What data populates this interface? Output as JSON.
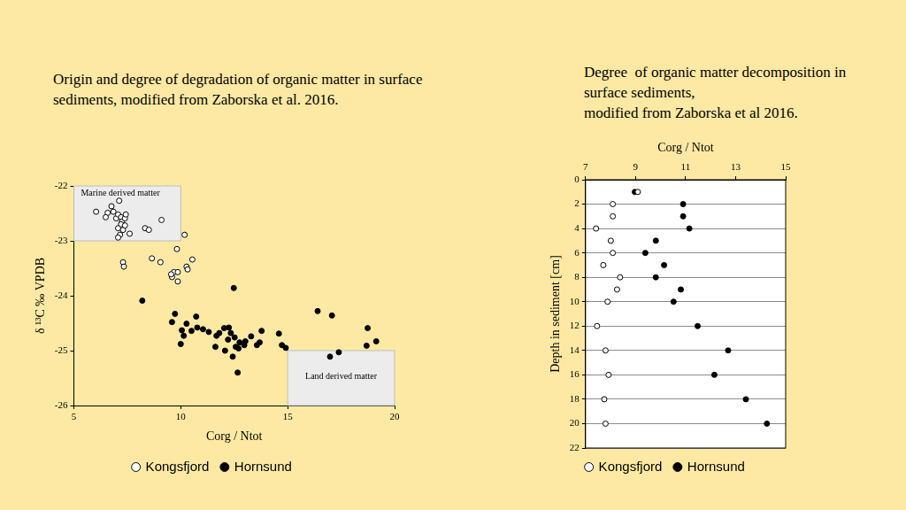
{
  "chart_data": [
    {
      "type": "scatter",
      "title": [
        "Origin and degree of degradation of organic matter in surface",
        "sediments, modified from Zaborska et al. 2016."
      ],
      "x_label": "Corg / Ntot",
      "y_label": "δ ¹³C ‰ VPDB",
      "xlim": [
        5,
        20
      ],
      "xticks": [
        5,
        10,
        15,
        20
      ],
      "ylim": [
        -26,
        -22
      ],
      "yticks": [
        -26,
        -25,
        -24,
        -23,
        -22
      ],
      "grid": false,
      "legend": "bottom",
      "annotations": [
        {
          "text": "Marine derived matter",
          "x": [
            5,
            10
          ],
          "y": [
            -23,
            -22
          ]
        },
        {
          "text": "Land derived matter",
          "x": [
            15,
            20
          ],
          "y": [
            -26,
            -25
          ]
        }
      ],
      "series": [
        {
          "name": "Kongsfjord",
          "color": "#000000",
          "marker": "circle_open",
          "x": [
            6.04,
            6.58,
            6.49,
            6.76,
            7.12,
            6.85,
            6.98,
            7.07,
            7.21,
            7.25,
            7.39,
            7.43,
            7.21,
            7.07,
            7.3,
            7.16,
            7.07,
            7.39,
            7.61,
            8.33,
            8.51,
            9.1,
            10.18,
            7.3,
            7.34,
            8.65,
            9.05,
            9.82,
            10.54,
            10.27,
            10.32,
            9.68,
            9.86,
            9.59,
            9.86,
            9.55
          ],
          "values": [
            -22.47,
            -22.49,
            -22.57,
            -22.37,
            -22.27,
            -22.47,
            -22.59,
            -22.52,
            -22.57,
            -22.65,
            -22.59,
            -22.52,
            -22.7,
            -22.77,
            -22.8,
            -22.89,
            -22.94,
            -22.72,
            -22.87,
            -22.77,
            -22.8,
            -22.62,
            -22.89,
            -23.39,
            -23.47,
            -23.32,
            -23.39,
            -23.15,
            -23.34,
            -23.47,
            -23.52,
            -23.57,
            -23.57,
            -23.66,
            -23.74,
            -23.61
          ]
        },
        {
          "name": "Hornsund",
          "color": "#000000",
          "marker": "circle",
          "x": [
            8.2,
            12.48,
            9.73,
            9.59,
            10.72,
            10.27,
            10.05,
            10.14,
            10.5,
            10.77,
            11.04,
            11.31,
            11.67,
            11.8,
            12.03,
            12.25,
            12.34,
            12.21,
            12.52,
            12.57,
            12.75,
            13.02,
            13.29,
            13.56,
            13.78,
            13.69,
            12.97,
            12.43,
            12.66,
            11.62,
            12.07,
            10.0,
            14.59,
            14.73,
            14.91,
            16.4,
            17.07,
            16.98,
            17.39,
            18.74,
            18.69,
            19.14,
            12.7
          ],
          "values": [
            -24.09,
            -23.86,
            -24.33,
            -24.48,
            -24.38,
            -24.51,
            -24.63,
            -24.73,
            -24.64,
            -24.58,
            -24.61,
            -24.66,
            -24.73,
            -24.68,
            -24.59,
            -24.58,
            -24.68,
            -24.8,
            -24.76,
            -24.93,
            -24.85,
            -24.83,
            -24.74,
            -24.9,
            -24.64,
            -24.85,
            -24.9,
            -25.11,
            -25.4,
            -24.93,
            -25.0,
            -24.88,
            -24.69,
            -24.9,
            -24.95,
            -24.28,
            -24.36,
            -25.11,
            -25.03,
            -24.59,
            -24.91,
            -24.83,
            -24.96
          ]
        }
      ]
    },
    {
      "type": "scatter",
      "title": [
        "Degree  of organic matter decomposition in",
        "surface sediments,",
        "modified from Zaborska et al 2016."
      ],
      "x_label": "Corg / Ntot",
      "y_label": "Depth in sediment [cm]",
      "xlim": [
        7,
        15
      ],
      "xticks": [
        7,
        9,
        11,
        13,
        15
      ],
      "ylim": [
        22,
        0
      ],
      "yticks": [
        0,
        2,
        4,
        6,
        8,
        10,
        12,
        14,
        16,
        18,
        20,
        22
      ],
      "grid": "y",
      "legend": "bottom",
      "series": [
        {
          "name": "Kongsfjord",
          "color": "#000000",
          "marker": "circle_open",
          "x": [
            9.09,
            8.09,
            8.09,
            7.42,
            8.01,
            8.09,
            7.71,
            8.38,
            8.26,
            7.88,
            7.46,
            7.8,
            7.92,
            7.75,
            7.8
          ],
          "values": [
            1,
            2,
            3,
            4,
            5,
            6,
            7,
            8,
            9,
            10,
            12,
            14,
            16,
            18,
            20
          ]
        },
        {
          "name": "Hornsund",
          "color": "#000000",
          "marker": "circle",
          "x": [
            8.97,
            10.9,
            10.9,
            11.15,
            9.81,
            9.39,
            10.14,
            9.81,
            10.81,
            10.52,
            11.48,
            12.7,
            12.15,
            13.41,
            14.25
          ],
          "values": [
            1,
            2,
            3,
            4,
            5,
            6,
            7,
            8,
            9,
            10,
            12,
            14,
            16,
            18,
            20
          ]
        }
      ]
    }
  ]
}
